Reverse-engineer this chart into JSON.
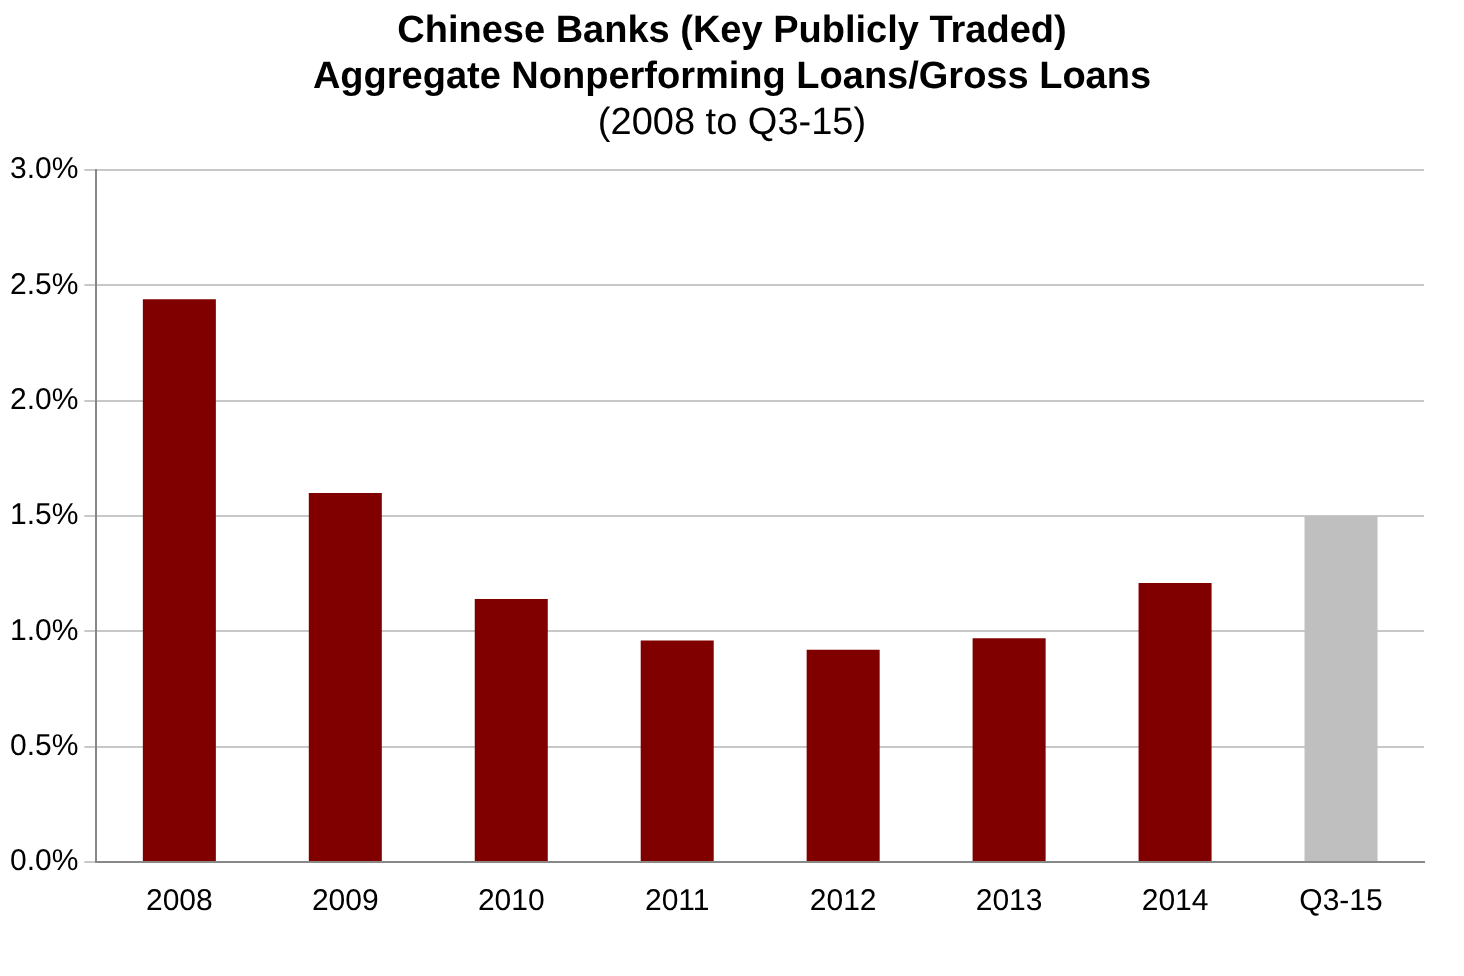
{
  "chart_data": {
    "type": "bar",
    "title": "Chinese Banks (Key Publicly Traded)\nAggregate Nonperforming Loans/Gross Loans",
    "subtitle": "(2008 to Q3-15)",
    "categories": [
      "2008",
      "2009",
      "2010",
      "2011",
      "2012",
      "2013",
      "2014",
      "Q3-15"
    ],
    "values": [
      2.44,
      1.6,
      1.14,
      0.96,
      0.92,
      0.97,
      1.21,
      1.5
    ],
    "colors": [
      "#800000",
      "#800000",
      "#800000",
      "#800000",
      "#800000",
      "#800000",
      "#800000",
      "#bfbfbf"
    ],
    "ylim": [
      0,
      3
    ],
    "yticks": [
      {
        "value": 0,
        "label": "0.0%"
      },
      {
        "value": 0.5,
        "label": "0.5%"
      },
      {
        "value": 1,
        "label": "1.0%"
      },
      {
        "value": 1.5,
        "label": "1.5%"
      },
      {
        "value": 2,
        "label": "2.0%"
      },
      {
        "value": 2.5,
        "label": "2.5%"
      },
      {
        "value": 3,
        "label": "3.0%"
      }
    ],
    "grid": "y",
    "legend": false
  }
}
